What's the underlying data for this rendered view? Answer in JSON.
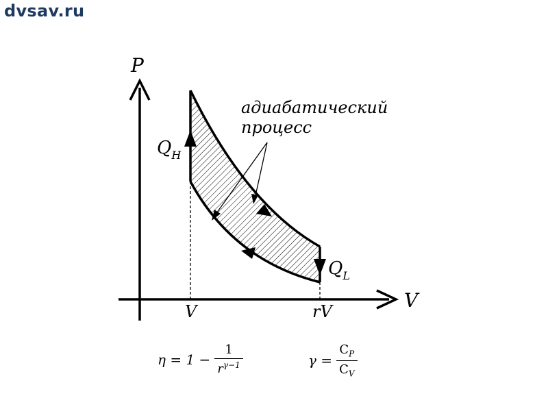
{
  "site": {
    "logo_text": "dvsav.ru",
    "logo_color": "#1f3a5f"
  },
  "diagram": {
    "axis_p": "P",
    "axis_v": "V",
    "tick_v": "V",
    "tick_rv": "rV",
    "annotation_line1": "адиабатический",
    "annotation_line2": "процесс",
    "heat_in": {
      "main": "Q",
      "sub": "H"
    },
    "heat_out": {
      "main": "Q",
      "sub": "L"
    }
  },
  "formulas": {
    "eta": {
      "lhs": "η = 1 −",
      "num": "1",
      "den_base": "r",
      "den_exp": "γ−1"
    },
    "gamma": {
      "lhs": "γ =",
      "num_base": "C",
      "num_sub": "P",
      "den_base": "C",
      "den_sub": "V"
    }
  }
}
